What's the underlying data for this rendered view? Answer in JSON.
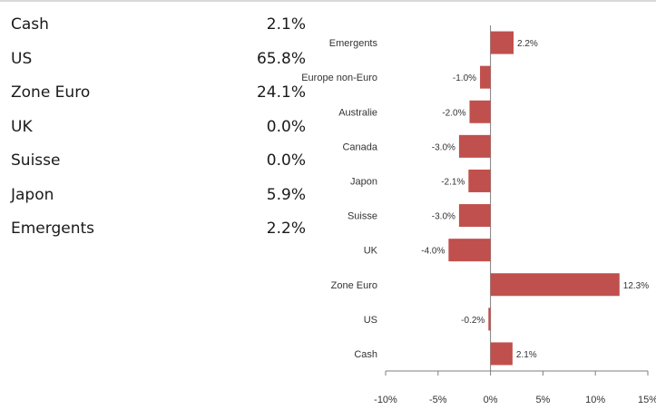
{
  "allocation_table": [
    {
      "label": "Cash",
      "value": "2.1%"
    },
    {
      "label": "US",
      "value": "65.8%"
    },
    {
      "label": "Zone Euro",
      "value": "24.1%"
    },
    {
      "label": "UK",
      "value": "0.0%"
    },
    {
      "label": "Suisse",
      "value": "0.0%"
    },
    {
      "label": "Japon",
      "value": "5.9%"
    },
    {
      "label": "Emergents",
      "value": "2.2%"
    }
  ],
  "chart_data": {
    "type": "bar",
    "orientation": "horizontal",
    "categories": [
      "Emergents",
      "Europe non-Euro",
      "Australie",
      "Canada",
      "Japon",
      "Suisse",
      "UK",
      "Zone Euro",
      "US",
      "Cash"
    ],
    "values": [
      2.2,
      -1.0,
      -2.0,
      -3.0,
      -2.1,
      -3.0,
      -4.0,
      12.3,
      -0.2,
      2.1
    ],
    "data_labels": [
      "2.2%",
      "-1.0%",
      "-2.0%",
      "-3.0%",
      "-2.1%",
      "-3.0%",
      "-4.0%",
      "12.3%",
      "-0.2%",
      "2.1%"
    ],
    "xlim": [
      -10,
      15
    ],
    "xticks": [
      -10,
      -5,
      0,
      5,
      10,
      15
    ],
    "xtick_labels": [
      "-10%",
      "-5%",
      "0%",
      "5%",
      "10%",
      "15%"
    ],
    "bar_color": "#c0504d",
    "grid": false
  }
}
